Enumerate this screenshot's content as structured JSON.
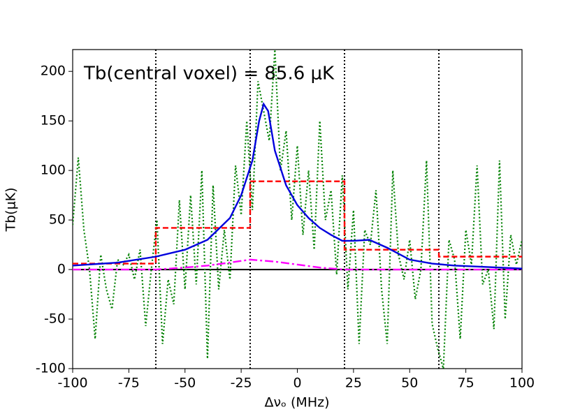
{
  "chart_data": {
    "type": "line",
    "annotation": "Tb(central voxel) = 85.6 μK",
    "xlabel": "Δνₒ (MHz)",
    "ylabel": "Tb(μK)",
    "xlim": [
      -100,
      100
    ],
    "ylim": [
      -100,
      222
    ],
    "xticks": [
      -100,
      -75,
      -50,
      -25,
      0,
      25,
      50,
      75,
      100
    ],
    "yticks": [
      -100,
      -50,
      0,
      50,
      100,
      150,
      200
    ],
    "vlines": [
      -63,
      -21,
      21,
      63
    ],
    "hline": 0,
    "series": [
      {
        "color": "#008000",
        "style": "dotted",
        "x": [
          -100,
          -97.5,
          -95,
          -92.5,
          -90,
          -87.5,
          -85,
          -82.5,
          -80,
          -77.5,
          -75,
          -72.5,
          -70,
          -67.5,
          -65,
          -62.5,
          -60,
          -57.5,
          -55,
          -52.5,
          -50,
          -47.5,
          -45,
          -42.5,
          -40,
          -37.5,
          -35,
          -32.5,
          -30,
          -27.5,
          -25,
          -22.5,
          -20,
          -17.5,
          -15,
          -12.5,
          -10,
          -7.5,
          -5,
          -2.5,
          0,
          2.5,
          5,
          7.5,
          10,
          12.5,
          15,
          17.5,
          20,
          22.5,
          25,
          27.5,
          30,
          32.5,
          35,
          37.5,
          40,
          42.5,
          45,
          47.5,
          50,
          52.5,
          55,
          57.5,
          60,
          62.5,
          65,
          67.5,
          70,
          72.5,
          75,
          77.5,
          80,
          82.5,
          85,
          87.5,
          90,
          92.5,
          95,
          97.5,
          100
        ],
        "values": [
          45,
          113,
          40,
          0,
          -70,
          15,
          -20,
          -40,
          10,
          5,
          15,
          -10,
          20,
          -57,
          0,
          50,
          -75,
          -10,
          -35,
          70,
          -20,
          75,
          -15,
          100,
          -90,
          85,
          -20,
          40,
          -10,
          105,
          55,
          150,
          60,
          190,
          160,
          130,
          222,
          100,
          140,
          50,
          125,
          35,
          100,
          20,
          150,
          50,
          80,
          -5,
          95,
          -20,
          60,
          -75,
          40,
          25,
          80,
          -20,
          -75,
          100,
          15,
          -10,
          30,
          -30,
          0,
          110,
          -55,
          -80,
          -100,
          30,
          10,
          -70,
          40,
          5,
          105,
          -15,
          0,
          -60,
          110,
          -50,
          35,
          5,
          30
        ]
      },
      {
        "color": "#ff0000",
        "style": "dashed",
        "x": [
          -100,
          -63,
          -63,
          -21,
          -21,
          21,
          21,
          63,
          63,
          100
        ],
        "values": [
          6,
          6,
          42,
          42,
          89,
          89,
          20,
          20,
          13,
          13
        ]
      },
      {
        "color": "#ff00ff",
        "style": "dashdot",
        "x": [
          -100,
          -63,
          -50,
          -40,
          -30,
          -21,
          -10,
          0,
          10,
          21,
          100
        ],
        "values": [
          0,
          0,
          2,
          4,
          7,
          10,
          8,
          5,
          2,
          0,
          0
        ]
      },
      {
        "color": "#0000dd",
        "style": "solid",
        "x": [
          -100,
          -80,
          -63,
          -50,
          -40,
          -30,
          -25,
          -20,
          -17,
          -15,
          -13,
          -10,
          -5,
          0,
          5,
          10,
          15,
          20,
          25,
          32,
          40,
          50,
          60,
          70,
          80,
          100
        ],
        "values": [
          4,
          7,
          13,
          20,
          30,
          52,
          75,
          110,
          150,
          167,
          160,
          120,
          85,
          65,
          52,
          42,
          35,
          29,
          29,
          30,
          22,
          10,
          6,
          4,
          3,
          1
        ]
      }
    ]
  }
}
